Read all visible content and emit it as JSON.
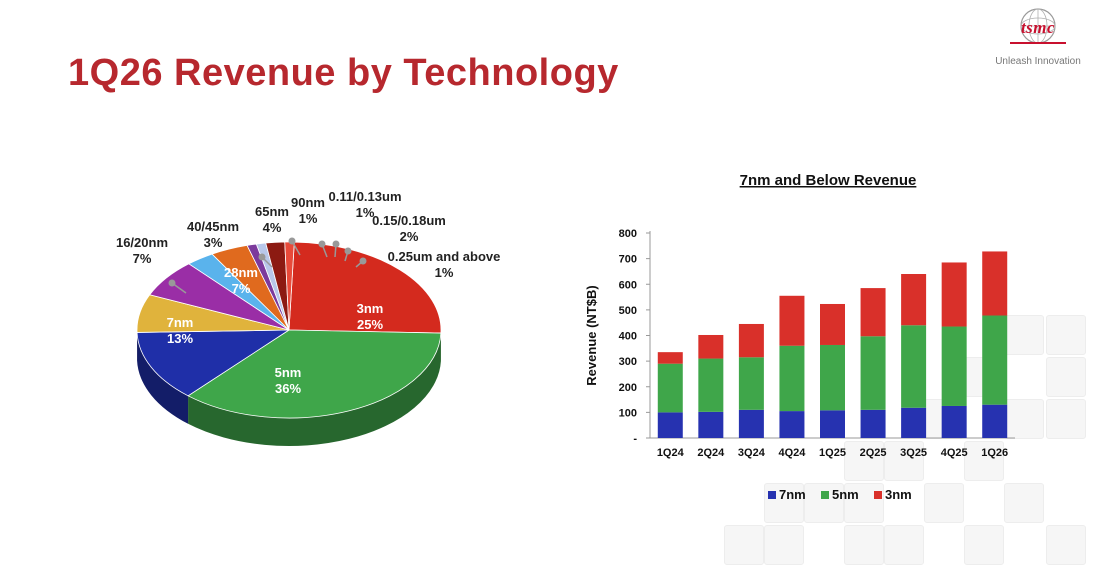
{
  "page": {
    "title": "1Q26 Revenue by Technology"
  },
  "logo": {
    "wordmark": "tsmc",
    "tagline": "Unleash Innovation"
  },
  "chart_data": [
    {
      "type": "pie",
      "slices": [
        {
          "label": "3nm",
          "value": 25,
          "pct_text": "25%",
          "color": "#d42a1e"
        },
        {
          "label": "5nm",
          "value": 36,
          "pct_text": "36%",
          "color": "#3fa64a"
        },
        {
          "label": "7nm",
          "value": 13,
          "pct_text": "13%",
          "color": "#1f2fa8"
        },
        {
          "label": "16/20nm",
          "value": 7,
          "pct_text": "7%",
          "color": "#e0b33c"
        },
        {
          "label": "28nm",
          "value": 7,
          "pct_text": "7%",
          "color": "#9a2ea6"
        },
        {
          "label": "40/45nm",
          "value": 3,
          "pct_text": "3%",
          "color": "#5ab3ec"
        },
        {
          "label": "65nm",
          "value": 4,
          "pct_text": "4%",
          "color": "#e06a1e"
        },
        {
          "label": "90nm",
          "value": 1,
          "pct_text": "1%",
          "color": "#7c3a9c"
        },
        {
          "label": "0.11/0.13um",
          "value": 1,
          "pct_text": "1%",
          "color": "#b8c7ea"
        },
        {
          "label": "0.15/0.18um",
          "value": 2,
          "pct_text": "2%",
          "color": "#8c1a12"
        },
        {
          "label": "0.25um and above",
          "value": 1,
          "pct_text": "1%",
          "color": "#e84a3a"
        }
      ]
    },
    {
      "type": "bar",
      "stacked": true,
      "title": "7nm and Below Revenue",
      "ylabel": "Revenue (NT$B)",
      "ylim": [
        0,
        800
      ],
      "yticks": [
        "-",
        "100",
        "200",
        "300",
        "400",
        "500",
        "600",
        "700",
        "800"
      ],
      "categories": [
        "1Q24",
        "2Q24",
        "3Q24",
        "4Q24",
        "1Q25",
        "2Q25",
        "3Q25",
        "4Q25",
        "1Q26"
      ],
      "series": [
        {
          "name": "7nm",
          "color": "#2632b0",
          "values": [
            100,
            102,
            110,
            105,
            108,
            110,
            118,
            125,
            130
          ]
        },
        {
          "name": "5nm",
          "color": "#3fa64a",
          "values": [
            190,
            208,
            205,
            255,
            255,
            287,
            322,
            310,
            348
          ]
        },
        {
          "name": "3nm",
          "color": "#d9302a",
          "values": [
            45,
            92,
            130,
            195,
            160,
            188,
            200,
            250,
            250
          ]
        }
      ],
      "legend": "bottom"
    }
  ]
}
